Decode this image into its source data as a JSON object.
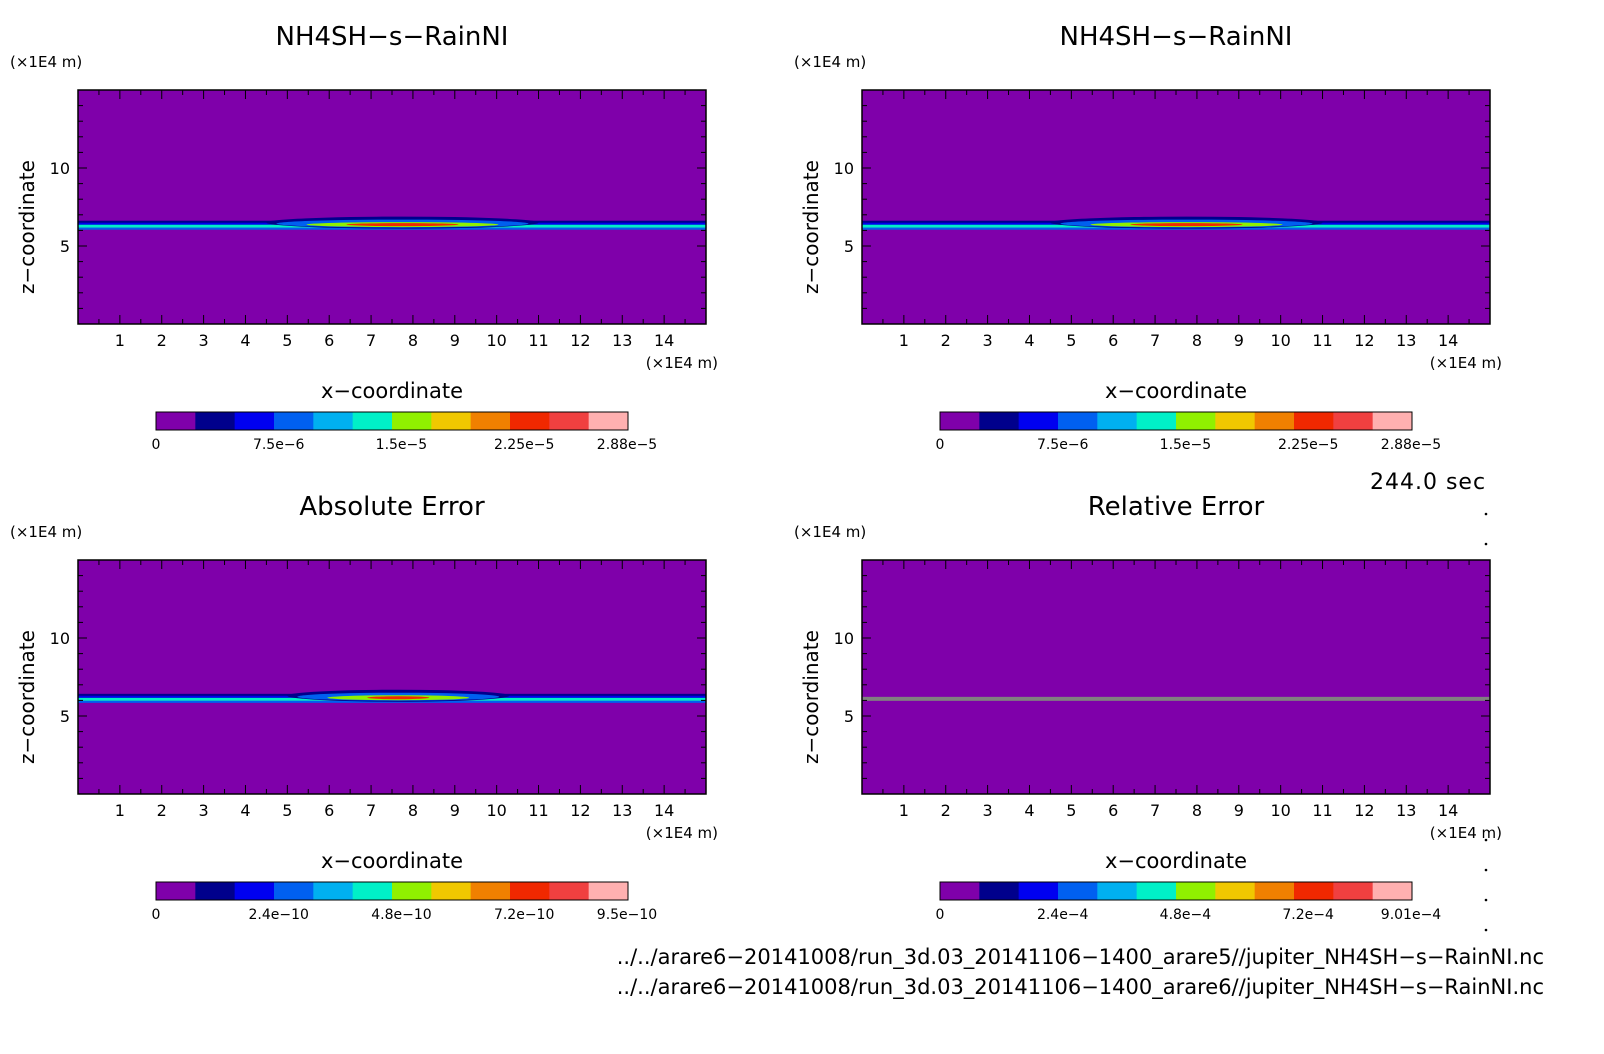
{
  "chart_data": [
    {
      "type": "heatmap",
      "title": "NH4SH−s−RainNI",
      "xlabel": "x−coordinate",
      "ylabel": "z−coordinate",
      "x_unit": "(×1E4 m)",
      "z_unit": "(×1E4 m)",
      "xlim": [
        0,
        15
      ],
      "zlim": [
        0,
        15
      ],
      "x_ticks": [
        "1",
        "2",
        "3",
        "4",
        "5",
        "6",
        "7",
        "8",
        "9",
        "10",
        "11",
        "12",
        "13",
        "14"
      ],
      "z_ticks": [
        "5",
        "10"
      ],
      "colorbar": {
        "min": 0,
        "max": 2.88e-05,
        "tick_labels": [
          "0",
          "7.5e−6",
          "1.5e−5",
          "2.25e−5",
          "2.88e−5"
        ]
      },
      "features": [
        {
          "kind": "layer",
          "z": 6.3,
          "x_range": [
            0,
            15
          ],
          "level": 0.3
        },
        {
          "kind": "bump",
          "z": 6.5,
          "x_range": [
            4.5,
            11
          ],
          "level": 0.8
        }
      ]
    },
    {
      "type": "heatmap",
      "title": "NH4SH−s−RainNI",
      "xlabel": "x−coordinate",
      "ylabel": "z−coordinate",
      "x_unit": "(×1E4 m)",
      "z_unit": "(×1E4 m)",
      "xlim": [
        0,
        15
      ],
      "zlim": [
        0,
        15
      ],
      "x_ticks": [
        "1",
        "2",
        "3",
        "4",
        "5",
        "6",
        "7",
        "8",
        "9",
        "10",
        "11",
        "12",
        "13",
        "14"
      ],
      "z_ticks": [
        "5",
        "10"
      ],
      "colorbar": {
        "min": 0,
        "max": 2.88e-05,
        "tick_labels": [
          "0",
          "7.5e−6",
          "1.5e−5",
          "2.25e−5",
          "2.88e−5"
        ]
      },
      "features": [
        {
          "kind": "layer",
          "z": 6.3,
          "x_range": [
            0,
            15
          ],
          "level": 0.3
        },
        {
          "kind": "bump",
          "z": 6.5,
          "x_range": [
            4.5,
            11
          ],
          "level": 0.8
        }
      ]
    },
    {
      "type": "heatmap",
      "title": "Absolute Error",
      "xlabel": "x−coordinate",
      "ylabel": "z−coordinate",
      "x_unit": "(×1E4 m)",
      "z_unit": "(×1E4 m)",
      "xlim": [
        0,
        15
      ],
      "zlim": [
        0,
        15
      ],
      "x_ticks": [
        "1",
        "2",
        "3",
        "4",
        "5",
        "6",
        "7",
        "8",
        "9",
        "10",
        "11",
        "12",
        "13",
        "14"
      ],
      "z_ticks": [
        "5",
        "10"
      ],
      "colorbar": {
        "min": 0,
        "max": 9.5e-10,
        "tick_labels": [
          "0",
          "2.4e−10",
          "4.8e−10",
          "7.2e−10",
          "9.5e−10"
        ]
      },
      "features": [
        {
          "kind": "layer",
          "z": 6.1,
          "x_range": [
            0,
            15
          ],
          "level": 0.4
        },
        {
          "kind": "bump",
          "z": 6.3,
          "x_range": [
            5,
            10.3
          ],
          "level": 0.5
        }
      ]
    },
    {
      "type": "heatmap",
      "title": "Relative Error",
      "xlabel": "x−coordinate",
      "ylabel": "z−coordinate",
      "x_unit": "(×1E4 m)",
      "z_unit": "(×1E4 m)",
      "xlim": [
        0,
        15
      ],
      "zlim": [
        0,
        15
      ],
      "x_ticks": [
        "1",
        "2",
        "3",
        "4",
        "5",
        "6",
        "7",
        "8",
        "9",
        "10",
        "11",
        "12",
        "13",
        "14"
      ],
      "z_ticks": [
        "5",
        "10"
      ],
      "colorbar": {
        "min": 0,
        "max": 0.000901,
        "tick_labels": [
          "0",
          "2.4e−4",
          "4.8e−4",
          "7.2e−4",
          "9.01e−4"
        ]
      },
      "features": [
        {
          "kind": "gray-line",
          "z": 6.1,
          "x_range": [
            0,
            15
          ]
        }
      ]
    }
  ],
  "colors": {
    "background_field": "#7F00AA",
    "colorbar": [
      "#7F00AA",
      "#00008C",
      "#0000F0",
      "#0060F0",
      "#00B0F0",
      "#00F0C8",
      "#90F000",
      "#F0C800",
      "#F08000",
      "#F02800",
      "#F04040",
      "#FFB0B0"
    ],
    "gray_line": "#808080"
  },
  "time_label": "244.0 sec",
  "files": [
    "../../arare6−20141008/run_3d.03_20141106−1400_arare5//jupiter_NH4SH−s−RainNI.nc",
    "../../arare6−20141008/run_3d.03_20141106−1400_arare6//jupiter_NH4SH−s−RainNI.nc"
  ]
}
